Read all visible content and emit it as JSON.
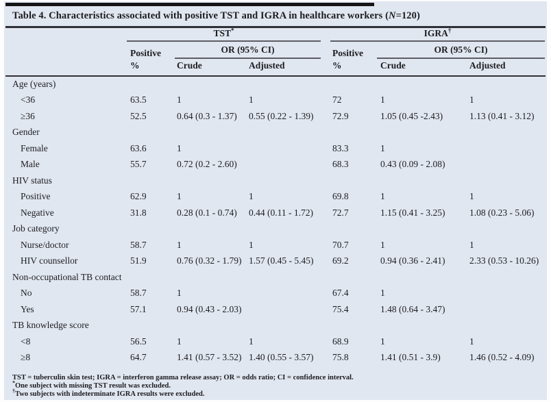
{
  "title": {
    "part1": "Table 4. Characteristics associated with positive TST and IGRA in healthcare workers (",
    "n": "N",
    "part2": "=120)"
  },
  "header": {
    "tst": {
      "name": "TST",
      "sup": "*"
    },
    "igra": {
      "name": "IGRA",
      "sup": "†"
    },
    "positive": "Positive",
    "percent": "%",
    "or_ci": "OR (95% CI)",
    "crude": "Crude",
    "adjusted": "Adjusted"
  },
  "rows": [
    {
      "type": "group",
      "label": "Age (years)",
      "cells": [
        "",
        "",
        "",
        "",
        "",
        ""
      ]
    },
    {
      "type": "item",
      "label": "<36",
      "cells": [
        "63.5",
        "1",
        "1",
        "72",
        "1",
        "1"
      ]
    },
    {
      "type": "item",
      "label": "≥36",
      "cells": [
        "52.5",
        "0.64 (0.3 - 1.37)",
        "0.55 (0.22 - 1.39)",
        "72.9",
        "1.05 (0.45 -2.43)",
        "1.13 (0.41 - 3.12)"
      ]
    },
    {
      "type": "group",
      "label": "Gender",
      "cells": [
        "",
        "",
        "",
        "",
        "",
        ""
      ]
    },
    {
      "type": "item",
      "label": "Female",
      "cells": [
        "63.6",
        "1",
        "",
        "83.3",
        "1",
        ""
      ]
    },
    {
      "type": "item",
      "label": "Male",
      "cells": [
        "55.7",
        "0.72 (0.2 - 2.60)",
        "",
        "68.3",
        "0.43 (0.09 - 2.08)",
        ""
      ]
    },
    {
      "type": "group",
      "label": "HIV status",
      "cells": [
        "",
        "",
        "",
        "",
        "",
        ""
      ]
    },
    {
      "type": "item",
      "label": "Positive",
      "cells": [
        "62.9",
        "1",
        "1",
        "69.8",
        "1",
        "1"
      ]
    },
    {
      "type": "item",
      "label": "Negative",
      "cells": [
        "31.8",
        "0.28 (0.1 - 0.74)",
        "0.44 (0.11 - 1.72)",
        "72.7",
        "1.15 (0.41 - 3.25)",
        "1.08 (0.23 - 5.06)"
      ]
    },
    {
      "type": "group",
      "label": "Job category",
      "cells": [
        "",
        "",
        "",
        "",
        "",
        ""
      ]
    },
    {
      "type": "item",
      "label": "Nurse/doctor",
      "cells": [
        "58.7",
        "1",
        "1",
        "70.7",
        "1",
        "1"
      ]
    },
    {
      "type": "item",
      "label": "HIV counsellor",
      "cells": [
        "51.9",
        "0.76 (0.32 - 1.79)",
        "1.57 (0.45 - 5.45)",
        "69.2",
        "0.94 (0.36 - 2.41)",
        "2.33 (0.53 - 10.26)"
      ]
    },
    {
      "type": "group",
      "label": "Non-occupational TB contact",
      "cells": [
        "",
        "",
        "",
        "",
        "",
        ""
      ]
    },
    {
      "type": "item",
      "label": "No",
      "cells": [
        "58.7",
        "1",
        "",
        "67.4",
        "1",
        ""
      ]
    },
    {
      "type": "item",
      "label": "Yes",
      "cells": [
        "57.1",
        "0.94 (0.43 - 2.03)",
        "",
        "75.4",
        "1.48 (0.64 - 3.47)",
        ""
      ]
    },
    {
      "type": "group",
      "label": "TB knowledge score",
      "cells": [
        "",
        "",
        "",
        "",
        "",
        ""
      ]
    },
    {
      "type": "item",
      "label": "<8",
      "cells": [
        "56.5",
        "1",
        "1",
        "68.9",
        "1",
        "1"
      ]
    },
    {
      "type": "item",
      "label": "≥8",
      "cells": [
        "64.7",
        "1.41 (0.57 - 3.52)",
        "1.40 (0.55 - 3.57)",
        "75.8",
        "1.41 (0.51 - 3.9)",
        "1.46 (0.52 - 4.09)"
      ]
    }
  ],
  "footnotes": [
    {
      "sup": "",
      "text": "TST = tuberculin skin test; IGRA = interferon gamma release assay; OR = odds ratio; CI = confidence interval."
    },
    {
      "sup": "*",
      "text": "One subject with missing TST result was excluded."
    },
    {
      "sup": "†",
      "text": "Two subjects with indeterminate IGRA results were excluded."
    }
  ]
}
